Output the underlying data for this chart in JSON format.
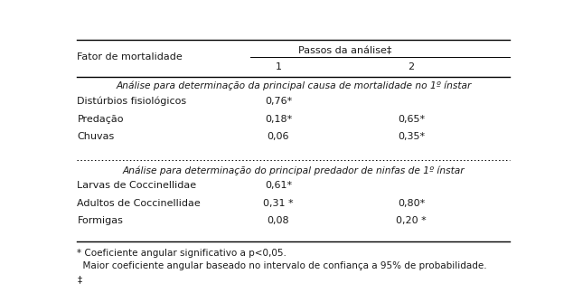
{
  "header_col": "Fator de mortalidade",
  "header_group": "Passos da análise‡",
  "sub_headers": [
    "1",
    "2"
  ],
  "section1_title": "Análise para determinação da principal causa de mortalidade no 1º ínstar",
  "section1_rows": [
    [
      "Distúrbios fisiológicos",
      "0,76*",
      ""
    ],
    [
      "Predação",
      "0,18*",
      "0,65*"
    ],
    [
      "Chuvas",
      "0,06",
      "0,35*"
    ]
  ],
  "section2_title": "Análise para determinação do principal predador de ninfas de 1º ínstar",
  "section2_rows": [
    [
      "Larvas de Coccinellidae",
      "0,61*",
      ""
    ],
    [
      "Adultos de Coccinellidae",
      "0,31 *",
      "0,80*"
    ],
    [
      "Formigas",
      "0,08",
      "0,20 *"
    ]
  ],
  "footnote1": "* Coeficiente angular significativo a p<0,05.",
  "footnote2": "  Maior coeficiente angular baseado no intervalo de confiança a 95% de probabilidade.",
  "footnote3": "‡",
  "bg_color": "#ffffff",
  "text_color": "#1a1a1a",
  "font_size": 8.0,
  "font_family": "DejaVu Sans"
}
